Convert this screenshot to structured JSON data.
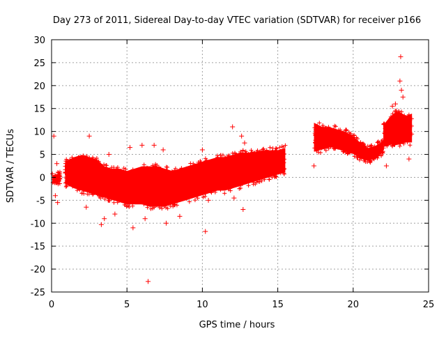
{
  "chart_data": {
    "type": "scatter",
    "title": "Day 273 of 2011, Sidereal Day-to-day VTEC variation (SDTVAR) for receiver p166",
    "xlabel": "GPS time / hours",
    "ylabel": "SDTVAR / TECUs",
    "xlim": [
      0,
      25
    ],
    "ylim": [
      -25,
      30
    ],
    "x_ticks": [
      0,
      5,
      10,
      15,
      20,
      25
    ],
    "y_ticks": [
      -25,
      -20,
      -15,
      -10,
      -5,
      0,
      5,
      10,
      15,
      20,
      25,
      30
    ],
    "grid": true,
    "marker": "+",
    "colors": {
      "series": "#ff0000",
      "grid": "#a0a0a0",
      "axis": "#000000"
    },
    "series": [
      {
        "name": "SDTVAR",
        "band_segments": [
          {
            "x": [
              0.05,
              0.6
            ],
            "low": [
              -2.0,
              -1.5
            ],
            "high": [
              1.0,
              1.5
            ]
          },
          {
            "x": [
              0.9,
              1.5,
              2.0,
              2.5,
              3.0,
              3.5,
              4.0,
              4.5,
              5.0,
              5.5,
              6.0,
              6.5,
              7.0,
              7.5,
              8.0,
              8.5,
              9.0,
              9.5,
              10.0,
              10.5,
              11.0,
              11.5,
              12.0,
              12.5,
              13.0,
              13.5,
              14.0,
              14.5,
              15.0,
              15.5
            ],
            "low": [
              -2.0,
              -3.0,
              -3.5,
              -4.0,
              -4.5,
              -5.0,
              -5.5,
              -6.0,
              -6.5,
              -6.5,
              -6.5,
              -7.0,
              -7.0,
              -7.0,
              -6.5,
              -6.0,
              -5.5,
              -5.0,
              -4.5,
              -4.0,
              -3.5,
              -3.5,
              -3.0,
              -2.5,
              -2.0,
              -1.5,
              -1.0,
              -0.5,
              0.0,
              0.5
            ],
            "high": [
              4.0,
              5.0,
              5.5,
              5.0,
              4.5,
              3.0,
              2.5,
              2.5,
              2.0,
              2.5,
              3.0,
              3.0,
              3.0,
              2.5,
              2.0,
              2.5,
              3.0,
              3.5,
              4.0,
              4.5,
              5.0,
              5.0,
              5.5,
              6.0,
              6.0,
              6.0,
              6.5,
              6.5,
              6.5,
              7.0
            ]
          },
          {
            "x": [
              17.4,
              18.0,
              18.5,
              19.0,
              19.5,
              20.0,
              20.5,
              21.0,
              21.5,
              22.0
            ],
            "low": [
              5.0,
              5.5,
              6.0,
              5.5,
              5.0,
              4.5,
              3.5,
              3.0,
              3.5,
              5.0
            ],
            "high": [
              12.5,
              11.5,
              11.5,
              11.0,
              10.5,
              9.5,
              8.0,
              7.0,
              7.5,
              8.5
            ]
          },
          {
            "x": [
              22.0,
              22.5,
              23.0,
              23.5,
              23.9
            ],
            "low": [
              6.0,
              6.5,
              6.5,
              7.0,
              7.0
            ],
            "high": [
              12.0,
              14.0,
              15.0,
              14.0,
              14.5
            ]
          }
        ],
        "outliers": [
          [
            0.15,
            9.0
          ],
          [
            0.25,
            -4.0
          ],
          [
            0.4,
            -5.5
          ],
          [
            0.35,
            3.0
          ],
          [
            2.5,
            9.0
          ],
          [
            2.3,
            -6.5
          ],
          [
            3.3,
            -10.3
          ],
          [
            3.5,
            -9.0
          ],
          [
            3.8,
            5.0
          ],
          [
            4.2,
            -8.0
          ],
          [
            5.2,
            6.5
          ],
          [
            5.4,
            -11.0
          ],
          [
            6.0,
            7.0
          ],
          [
            6.2,
            -9.0
          ],
          [
            6.4,
            -22.7
          ],
          [
            6.8,
            7.0
          ],
          [
            7.4,
            6.0
          ],
          [
            7.6,
            -10.0
          ],
          [
            8.5,
            -8.5
          ],
          [
            10.2,
            -11.8
          ],
          [
            10.4,
            -5.0
          ],
          [
            10.0,
            6.0
          ],
          [
            12.0,
            11.0
          ],
          [
            12.1,
            -4.5
          ],
          [
            12.6,
            9.0
          ],
          [
            12.8,
            7.5
          ],
          [
            12.7,
            -7.0
          ],
          [
            17.4,
            2.5
          ],
          [
            22.2,
            2.5
          ],
          [
            22.6,
            15.5
          ],
          [
            22.8,
            16.0
          ],
          [
            23.0,
            13.5
          ],
          [
            23.1,
            21.0
          ],
          [
            23.15,
            26.3
          ],
          [
            23.2,
            19.0
          ],
          [
            23.3,
            17.5
          ],
          [
            23.7,
            4.0
          ]
        ]
      }
    ]
  }
}
